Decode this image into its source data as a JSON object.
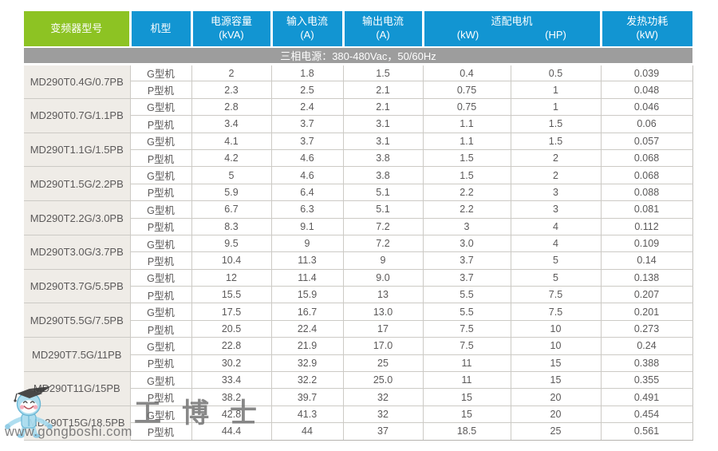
{
  "header": {
    "columns": [
      {
        "label": "变频器型号"
      },
      {
        "label": "机型"
      },
      {
        "label": "电源容量",
        "unit": "(kVA)"
      },
      {
        "label": "输入电流",
        "unit": "(A)"
      },
      {
        "label": "输出电流",
        "unit": "(A)"
      },
      {
        "label": "适配电机",
        "unit_kw": "(kW)",
        "unit_hp": "(HP)"
      },
      {
        "label": "发热功耗",
        "unit": "(kW)"
      }
    ]
  },
  "subheader": "三相电源：380-480Vac，50/60Hz",
  "table": {
    "groups": [
      {
        "model": "MD290T0.4G/0.7PB",
        "rows": [
          [
            "G型机",
            "2",
            "1.8",
            "1.5",
            "0.4",
            "0.5",
            "0.039"
          ],
          [
            "P型机",
            "2.3",
            "2.5",
            "2.1",
            "0.75",
            "1",
            "0.048"
          ]
        ]
      },
      {
        "model": "MD290T0.7G/1.1PB",
        "rows": [
          [
            "G型机",
            "2.8",
            "2.4",
            "2.1",
            "0.75",
            "1",
            "0.046"
          ],
          [
            "P型机",
            "3.4",
            "3.7",
            "3.1",
            "1.1",
            "1.5",
            "0.06"
          ]
        ]
      },
      {
        "model": "MD290T1.1G/1.5PB",
        "rows": [
          [
            "G型机",
            "4.1",
            "3.7",
            "3.1",
            "1.1",
            "1.5",
            "0.057"
          ],
          [
            "P型机",
            "4.2",
            "4.6",
            "3.8",
            "1.5",
            "2",
            "0.068"
          ]
        ]
      },
      {
        "model": "MD290T1.5G/2.2PB",
        "rows": [
          [
            "G型机",
            "5",
            "4.6",
            "3.8",
            "1.5",
            "2",
            "0.068"
          ],
          [
            "P型机",
            "5.9",
            "6.4",
            "5.1",
            "2.2",
            "3",
            "0.088"
          ]
        ]
      },
      {
        "model": "MD290T2.2G/3.0PB",
        "rows": [
          [
            "G型机",
            "6.7",
            "6.3",
            "5.1",
            "2.2",
            "3",
            "0.081"
          ],
          [
            "P型机",
            "8.3",
            "9.1",
            "7.2",
            "3",
            "4",
            "0.112"
          ]
        ]
      },
      {
        "model": "MD290T3.0G/3.7PB",
        "rows": [
          [
            "G型机",
            "9.5",
            "9",
            "7.2",
            "3.0",
            "4",
            "0.109"
          ],
          [
            "P型机",
            "10.4",
            "11.3",
            "9",
            "3.7",
            "5",
            "0.14"
          ]
        ]
      },
      {
        "model": "MD290T3.7G/5.5PB",
        "rows": [
          [
            "G型机",
            "12",
            "11.4",
            "9.0",
            "3.7",
            "5",
            "0.138"
          ],
          [
            "P型机",
            "15.5",
            "15.9",
            "13",
            "5.5",
            "7.5",
            "0.207"
          ]
        ]
      },
      {
        "model": "MD290T5.5G/7.5PB",
        "rows": [
          [
            "G型机",
            "17.5",
            "16.7",
            "13.0",
            "5.5",
            "7.5",
            "0.201"
          ],
          [
            "P型机",
            "20.5",
            "22.4",
            "17",
            "7.5",
            "10",
            "0.273"
          ]
        ]
      },
      {
        "model": "MD290T7.5G/11PB",
        "rows": [
          [
            "G型机",
            "22.8",
            "21.9",
            "17.0",
            "7.5",
            "10",
            "0.24"
          ],
          [
            "P型机",
            "30.2",
            "32.9",
            "25",
            "11",
            "15",
            "0.388"
          ]
        ]
      },
      {
        "model": "MD290T11G/15PB",
        "rows": [
          [
            "G型机",
            "33.4",
            "32.2",
            "25.0",
            "11",
            "15",
            "0.355"
          ],
          [
            "P型机",
            "38.2",
            "39.7",
            "32",
            "15",
            "20",
            "0.491"
          ]
        ]
      },
      {
        "model": "MD290T15G/18.5PB",
        "rows": [
          [
            "G型机",
            "42.8",
            "41.3",
            "32",
            "15",
            "20",
            "0.454"
          ],
          [
            "P型机",
            "44.4",
            "44",
            "37",
            "18.5",
            "25",
            "0.561"
          ]
        ]
      }
    ]
  },
  "watermark": {
    "brand": "工博士",
    "url": "www.gongboshi.com"
  },
  "colors": {
    "header_green": "#8dc323",
    "header_blue": "#1295d2",
    "band_gray": "#9d9d9d",
    "model_cell_bg": "#efece7",
    "text_gray": "#5b5959",
    "border_gray": "#cccac5",
    "mascot_blue": "#a9dcef"
  }
}
